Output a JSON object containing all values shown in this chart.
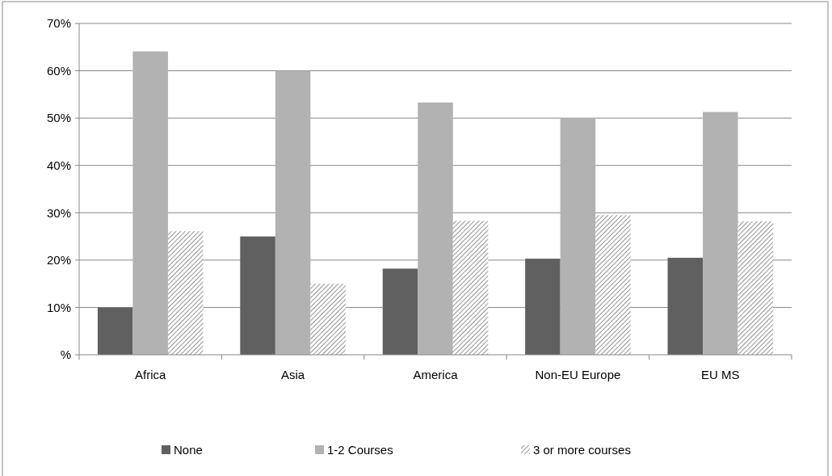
{
  "chart_data": {
    "type": "bar",
    "categories": [
      "Africa",
      "Asia",
      "America",
      "Non-EU Europe",
      "EU MS"
    ],
    "series": [
      {
        "name": "None",
        "color": "#606060",
        "values": [
          10,
          25,
          18.2,
          20.3,
          20.5
        ]
      },
      {
        "name": "1-2 Courses",
        "color": "#b2b2b2",
        "values": [
          64.1,
          60,
          53.3,
          50,
          51.3
        ]
      },
      {
        "name": "3 or more courses",
        "color": "#707070",
        "values": [
          26.1,
          15,
          28.3,
          29.5,
          28.2
        ]
      }
    ],
    "ylim": [
      0,
      70
    ],
    "yticks": [
      {
        "value": 0,
        "label": "%"
      },
      {
        "value": 10,
        "label": "10%"
      },
      {
        "value": 20,
        "label": "20%"
      },
      {
        "value": 30,
        "label": "30%"
      },
      {
        "value": 40,
        "label": "40%"
      },
      {
        "value": 50,
        "label": "50%"
      },
      {
        "value": 60,
        "label": "60%"
      },
      {
        "value": 70,
        "label": "70%"
      }
    ],
    "grid": "y",
    "legend": "bottom"
  }
}
